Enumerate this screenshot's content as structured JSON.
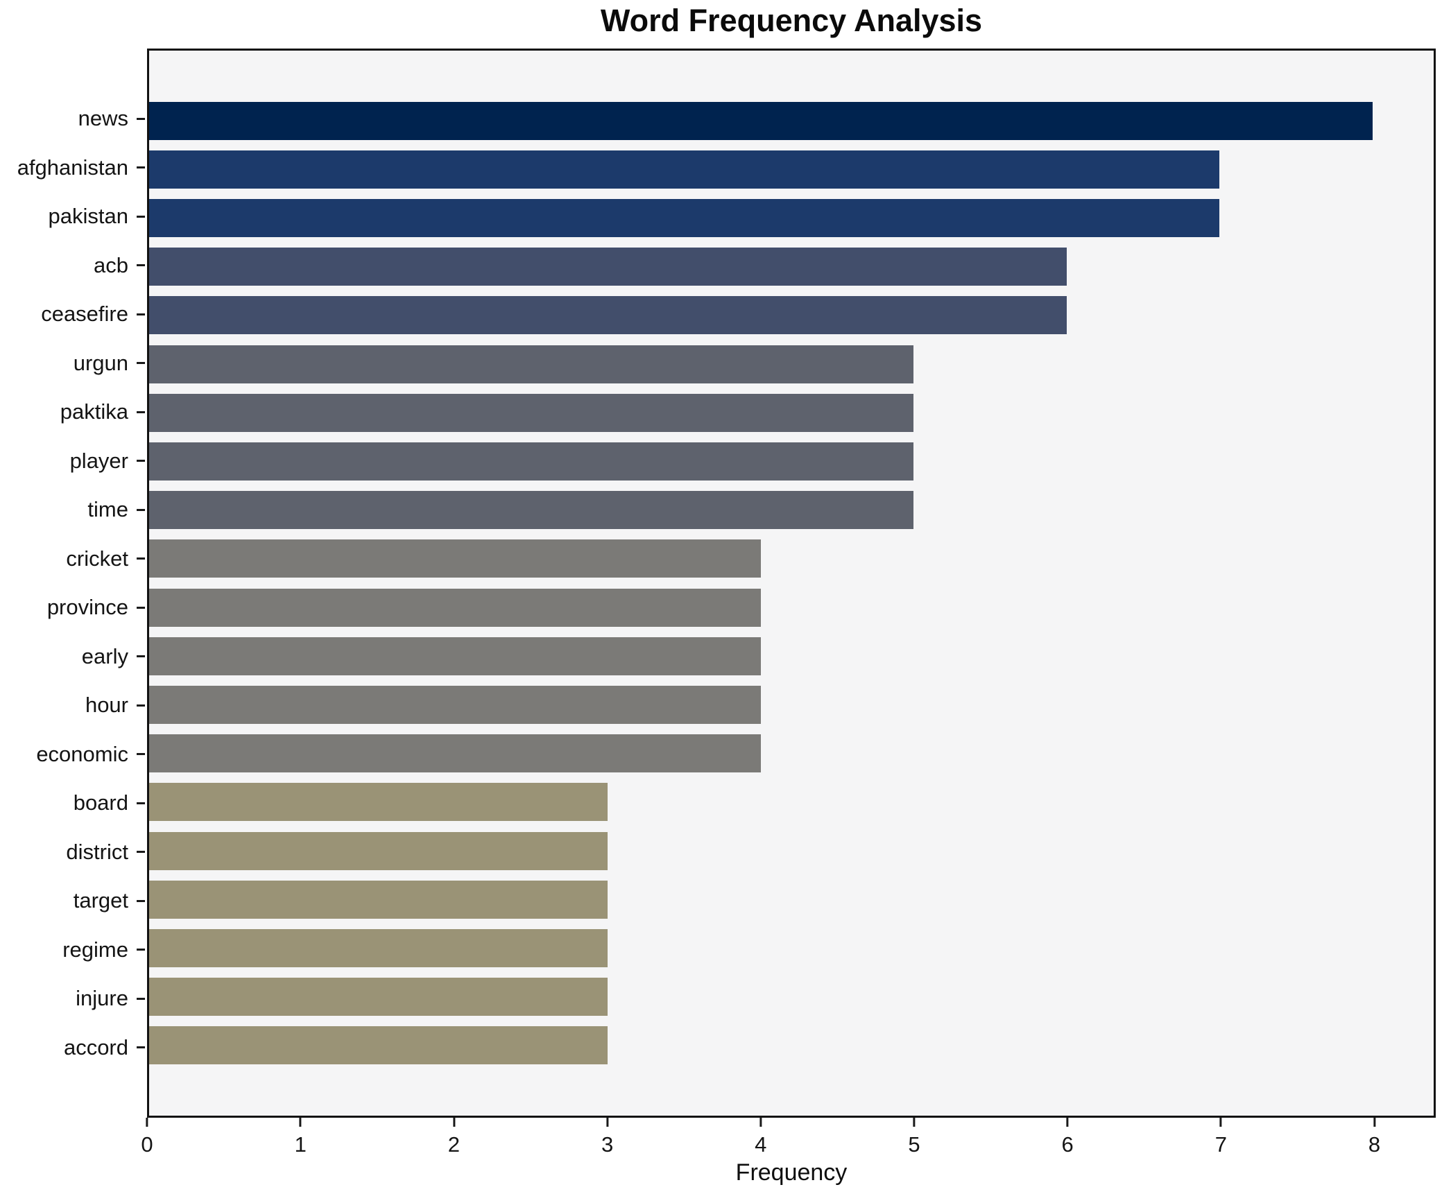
{
  "chart_data": {
    "type": "bar",
    "orientation": "horizontal",
    "title": "Word Frequency Analysis",
    "xlabel": "Frequency",
    "ylabel": "",
    "categories": [
      "news",
      "afghanistan",
      "pakistan",
      "acb",
      "ceasefire",
      "urgun",
      "paktika",
      "player",
      "time",
      "cricket",
      "province",
      "early",
      "hour",
      "economic",
      "board",
      "district",
      "target",
      "regime",
      "injure",
      "accord"
    ],
    "values": [
      8,
      7,
      7,
      6,
      6,
      5,
      5,
      5,
      5,
      4,
      4,
      4,
      4,
      4,
      3,
      3,
      3,
      3,
      3,
      3
    ],
    "bar_colors": [
      "#00234f",
      "#1c3a6b",
      "#1c3a6b",
      "#424e6b",
      "#424e6b",
      "#5e626d",
      "#5e626d",
      "#5e626d",
      "#5e626d",
      "#7b7a77",
      "#7b7a77",
      "#7b7a77",
      "#7b7a77",
      "#7b7a77",
      "#9a9376",
      "#9a9376",
      "#9a9376",
      "#9a9376",
      "#9a9376",
      "#9a9376"
    ],
    "xticks": [
      0,
      1,
      2,
      3,
      4,
      5,
      6,
      7,
      8
    ],
    "xlim": [
      0,
      8.4
    ],
    "grid": false,
    "legend": "none",
    "plot_background": "#f5f5f6",
    "figure_background": "#ffffff",
    "spine_color": "#121212"
  }
}
